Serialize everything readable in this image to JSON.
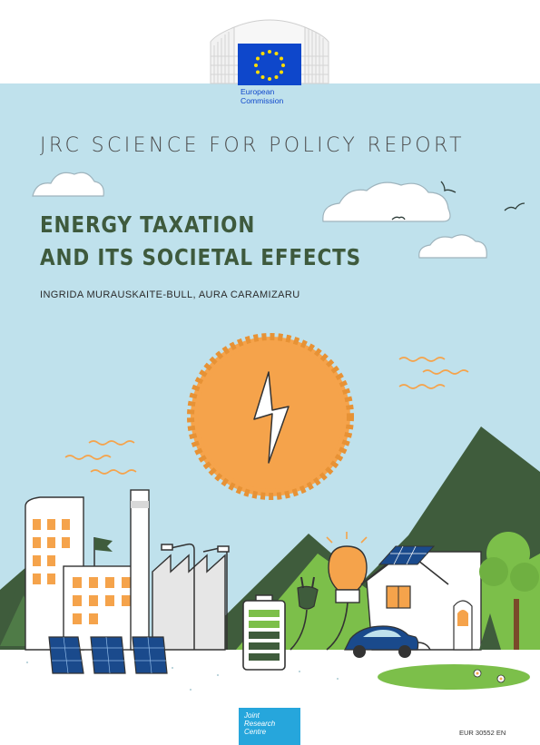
{
  "logo": {
    "line1": "European",
    "line2": "Commission"
  },
  "report": {
    "series": "JRC SCIENCE FOR POLICY REPORT",
    "title_line1": "ENERGY TAXATION",
    "title_line2": "AND ITS SOCIETAL EFFECTS",
    "authors": "INGRIDA MURAUSKAITE-BULL, AURA CARAMIZARU"
  },
  "footer": {
    "jrc_line1": "Joint",
    "jrc_line2": "Research",
    "jrc_line3": "Centre",
    "report_number": "EUR 30552 EN"
  },
  "colors": {
    "sky": "#bfe1ec",
    "title": "#3e5a3d",
    "sun": "#f5a34b",
    "dark_green": "#3f5c3c",
    "mid_green": "#7cbf4a",
    "eu_blue": "#0e47cb",
    "jrc_blue": "#26a6dc"
  }
}
